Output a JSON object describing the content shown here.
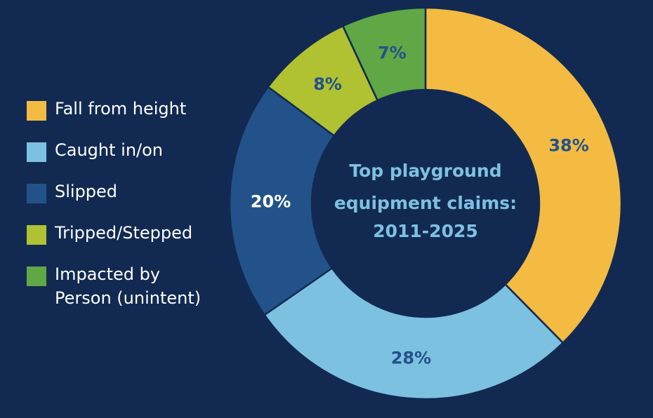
{
  "chart_data": {
    "type": "pie",
    "variant": "donut",
    "title": [
      "Top playground",
      "equipment claims:",
      "2011-2025"
    ],
    "categories": [
      "Fall from height",
      "Caught in/on",
      "Slipped",
      "Tripped/Stepped",
      "Impacted by\nPerson (unintent)"
    ],
    "values": [
      38,
      28,
      20,
      8,
      7
    ],
    "data_labels": [
      "38%",
      "28%",
      "20%",
      "8%",
      "7%"
    ],
    "colors": [
      "#f3bb42",
      "#7dc1e1",
      "#23528a",
      "#b0c131",
      "#5fa845"
    ],
    "label_colors": [
      "#23528a",
      "#23528a",
      "#ffffff",
      "#23528a",
      "#23528a"
    ],
    "legend_position": "left"
  }
}
